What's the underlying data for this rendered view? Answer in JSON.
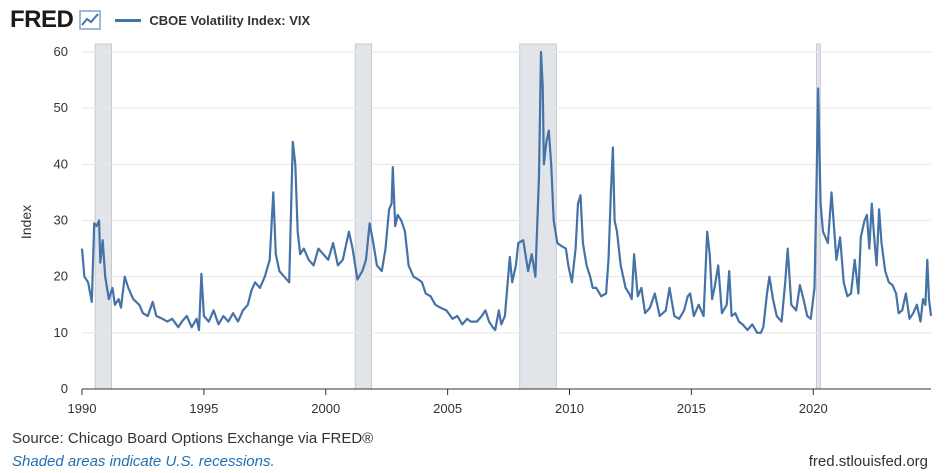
{
  "header": {
    "logo_text": "FRED",
    "logo_icon": "line-chart-icon"
  },
  "chart_data": {
    "type": "line",
    "title": "",
    "ylabel": "Index",
    "xlabel": "",
    "ylim": [
      0,
      60
    ],
    "xlim": [
      1990,
      2024.83
    ],
    "yticks": [
      0,
      10,
      20,
      30,
      40,
      50,
      60
    ],
    "xticks": [
      1990,
      1995,
      2000,
      2005,
      2010,
      2015,
      2020
    ],
    "grid": true,
    "legend_position": "top-left",
    "series": [
      {
        "name": "CBOE Volatility Index: VIX",
        "color": "#4572a7",
        "points": [
          [
            1990.0,
            25
          ],
          [
            1990.1,
            20
          ],
          [
            1990.25,
            19
          ],
          [
            1990.4,
            15.5
          ],
          [
            1990.5,
            29.5
          ],
          [
            1990.6,
            29
          ],
          [
            1990.7,
            30
          ],
          [
            1990.75,
            22.5
          ],
          [
            1990.85,
            26.5
          ],
          [
            1990.95,
            20
          ],
          [
            1991.1,
            16
          ],
          [
            1991.25,
            18
          ],
          [
            1991.35,
            15
          ],
          [
            1991.5,
            16
          ],
          [
            1991.6,
            14.5
          ],
          [
            1991.75,
            20
          ],
          [
            1991.9,
            18
          ],
          [
            1992.1,
            16
          ],
          [
            1992.35,
            15
          ],
          [
            1992.5,
            13.5
          ],
          [
            1992.7,
            13
          ],
          [
            1992.9,
            15.5
          ],
          [
            1993.05,
            13
          ],
          [
            1993.3,
            12.5
          ],
          [
            1993.5,
            12
          ],
          [
            1993.7,
            12.5
          ],
          [
            1993.95,
            11
          ],
          [
            1994.1,
            12
          ],
          [
            1994.3,
            13
          ],
          [
            1994.5,
            11
          ],
          [
            1994.7,
            12.5
          ],
          [
            1994.8,
            10.5
          ],
          [
            1994.9,
            20.5
          ],
          [
            1995.0,
            13
          ],
          [
            1995.2,
            12
          ],
          [
            1995.4,
            14
          ],
          [
            1995.6,
            11.5
          ],
          [
            1995.8,
            13
          ],
          [
            1996.0,
            12
          ],
          [
            1996.2,
            13.5
          ],
          [
            1996.4,
            12
          ],
          [
            1996.6,
            14
          ],
          [
            1996.8,
            15
          ],
          [
            1996.95,
            17.5
          ],
          [
            1997.1,
            19
          ],
          [
            1997.3,
            18
          ],
          [
            1997.5,
            20
          ],
          [
            1997.7,
            23
          ],
          [
            1997.85,
            35
          ],
          [
            1997.95,
            24
          ],
          [
            1998.1,
            21
          ],
          [
            1998.3,
            20
          ],
          [
            1998.5,
            19
          ],
          [
            1998.65,
            44
          ],
          [
            1998.75,
            40
          ],
          [
            1998.85,
            28
          ],
          [
            1998.95,
            24
          ],
          [
            1999.1,
            25
          ],
          [
            1999.3,
            23
          ],
          [
            1999.5,
            22
          ],
          [
            1999.7,
            25
          ],
          [
            1999.9,
            24
          ],
          [
            2000.1,
            23
          ],
          [
            2000.3,
            26
          ],
          [
            2000.5,
            22
          ],
          [
            2000.7,
            23
          ],
          [
            2000.95,
            28
          ],
          [
            2001.1,
            25
          ],
          [
            2001.3,
            19.5
          ],
          [
            2001.5,
            21
          ],
          [
            2001.65,
            23
          ],
          [
            2001.8,
            29.5
          ],
          [
            2001.95,
            26
          ],
          [
            2002.1,
            22
          ],
          [
            2002.3,
            21
          ],
          [
            2002.45,
            25
          ],
          [
            2002.6,
            32
          ],
          [
            2002.7,
            33
          ],
          [
            2002.75,
            39.5
          ],
          [
            2002.85,
            29
          ],
          [
            2002.95,
            31
          ],
          [
            2003.1,
            30
          ],
          [
            2003.25,
            28
          ],
          [
            2003.4,
            22
          ],
          [
            2003.6,
            20
          ],
          [
            2003.8,
            19.5
          ],
          [
            2003.95,
            19
          ],
          [
            2004.1,
            17
          ],
          [
            2004.3,
            16.5
          ],
          [
            2004.5,
            15
          ],
          [
            2004.7,
            14.5
          ],
          [
            2004.95,
            14
          ],
          [
            2005.2,
            12.5
          ],
          [
            2005.4,
            13
          ],
          [
            2005.6,
            11.5
          ],
          [
            2005.8,
            12.5
          ],
          [
            2005.95,
            12
          ],
          [
            2006.2,
            12
          ],
          [
            2006.4,
            13
          ],
          [
            2006.55,
            14
          ],
          [
            2006.7,
            12
          ],
          [
            2006.85,
            11
          ],
          [
            2006.95,
            10.5
          ],
          [
            2007.1,
            14
          ],
          [
            2007.2,
            11.5
          ],
          [
            2007.35,
            13
          ],
          [
            2007.55,
            23.5
          ],
          [
            2007.65,
            19
          ],
          [
            2007.8,
            22
          ],
          [
            2007.9,
            26
          ],
          [
            2008.1,
            26.5
          ],
          [
            2008.3,
            21
          ],
          [
            2008.45,
            24
          ],
          [
            2008.6,
            20
          ],
          [
            2008.75,
            38
          ],
          [
            2008.83,
            60
          ],
          [
            2008.9,
            54
          ],
          [
            2008.95,
            40
          ],
          [
            2009.05,
            44
          ],
          [
            2009.15,
            46
          ],
          [
            2009.25,
            40
          ],
          [
            2009.35,
            30
          ],
          [
            2009.5,
            26
          ],
          [
            2009.65,
            25.5
          ],
          [
            2009.85,
            25
          ],
          [
            2009.95,
            22
          ],
          [
            2010.1,
            19
          ],
          [
            2010.25,
            25
          ],
          [
            2010.35,
            33
          ],
          [
            2010.45,
            34.5
          ],
          [
            2010.55,
            26
          ],
          [
            2010.7,
            22
          ],
          [
            2010.85,
            20
          ],
          [
            2010.95,
            18
          ],
          [
            2011.1,
            18
          ],
          [
            2011.3,
            16.5
          ],
          [
            2011.5,
            17
          ],
          [
            2011.6,
            23
          ],
          [
            2011.7,
            35
          ],
          [
            2011.78,
            43
          ],
          [
            2011.85,
            30
          ],
          [
            2011.95,
            28
          ],
          [
            2012.1,
            22
          ],
          [
            2012.3,
            18
          ],
          [
            2012.45,
            17
          ],
          [
            2012.55,
            16
          ],
          [
            2012.65,
            24
          ],
          [
            2012.8,
            16.5
          ],
          [
            2012.95,
            18
          ],
          [
            2013.1,
            13.5
          ],
          [
            2013.3,
            14.5
          ],
          [
            2013.5,
            17
          ],
          [
            2013.7,
            13
          ],
          [
            2013.95,
            14
          ],
          [
            2014.1,
            18
          ],
          [
            2014.3,
            13
          ],
          [
            2014.5,
            12.5
          ],
          [
            2014.7,
            14
          ],
          [
            2014.85,
            16.5
          ],
          [
            2014.95,
            17
          ],
          [
            2015.1,
            13
          ],
          [
            2015.3,
            15
          ],
          [
            2015.5,
            13
          ],
          [
            2015.65,
            28
          ],
          [
            2015.75,
            24
          ],
          [
            2015.85,
            16
          ],
          [
            2015.95,
            18
          ],
          [
            2016.1,
            22
          ],
          [
            2016.25,
            13.5
          ],
          [
            2016.45,
            15
          ],
          [
            2016.55,
            21
          ],
          [
            2016.65,
            13
          ],
          [
            2016.8,
            13.5
          ],
          [
            2016.95,
            12
          ],
          [
            2017.1,
            11.5
          ],
          [
            2017.3,
            10.5
          ],
          [
            2017.5,
            11.5
          ],
          [
            2017.7,
            10
          ],
          [
            2017.85,
            10
          ],
          [
            2017.95,
            11
          ],
          [
            2018.1,
            17
          ],
          [
            2018.2,
            20
          ],
          [
            2018.35,
            16
          ],
          [
            2018.5,
            13
          ],
          [
            2018.7,
            12
          ],
          [
            2018.85,
            19
          ],
          [
            2018.95,
            25
          ],
          [
            2019.1,
            15
          ],
          [
            2019.3,
            14
          ],
          [
            2019.45,
            18.5
          ],
          [
            2019.6,
            16
          ],
          [
            2019.75,
            13
          ],
          [
            2019.9,
            12.5
          ],
          [
            2020.05,
            18
          ],
          [
            2020.15,
            40
          ],
          [
            2020.2,
            53.5
          ],
          [
            2020.3,
            33
          ],
          [
            2020.4,
            28
          ],
          [
            2020.5,
            27
          ],
          [
            2020.6,
            26
          ],
          [
            2020.75,
            35
          ],
          [
            2020.95,
            23
          ],
          [
            2021.1,
            27
          ],
          [
            2021.25,
            19
          ],
          [
            2021.4,
            16.5
          ],
          [
            2021.55,
            17
          ],
          [
            2021.7,
            23
          ],
          [
            2021.85,
            17
          ],
          [
            2021.95,
            27
          ],
          [
            2022.1,
            30
          ],
          [
            2022.2,
            31
          ],
          [
            2022.3,
            25
          ],
          [
            2022.4,
            33
          ],
          [
            2022.5,
            27
          ],
          [
            2022.6,
            22
          ],
          [
            2022.7,
            32
          ],
          [
            2022.8,
            26
          ],
          [
            2022.95,
            21
          ],
          [
            2023.1,
            19
          ],
          [
            2023.25,
            18.5
          ],
          [
            2023.4,
            17
          ],
          [
            2023.5,
            13.5
          ],
          [
            2023.65,
            14
          ],
          [
            2023.8,
            17
          ],
          [
            2023.95,
            12.5
          ],
          [
            2024.1,
            13.5
          ],
          [
            2024.25,
            15
          ],
          [
            2024.4,
            12
          ],
          [
            2024.5,
            16
          ],
          [
            2024.6,
            15
          ],
          [
            2024.68,
            23
          ],
          [
            2024.75,
            16
          ],
          [
            2024.83,
            13
          ]
        ]
      }
    ],
    "recessions": [
      [
        1990.54,
        1991.21
      ],
      [
        2001.21,
        2001.88
      ],
      [
        2007.96,
        2009.46
      ],
      [
        2020.13,
        2020.29
      ]
    ],
    "recession_color": "#e1e5ea"
  },
  "footer": {
    "source": "Source: Chicago Board Options Exchange via FRED®",
    "note": "Shaded areas indicate U.S. recessions.",
    "site": "fred.stlouisfed.org"
  }
}
